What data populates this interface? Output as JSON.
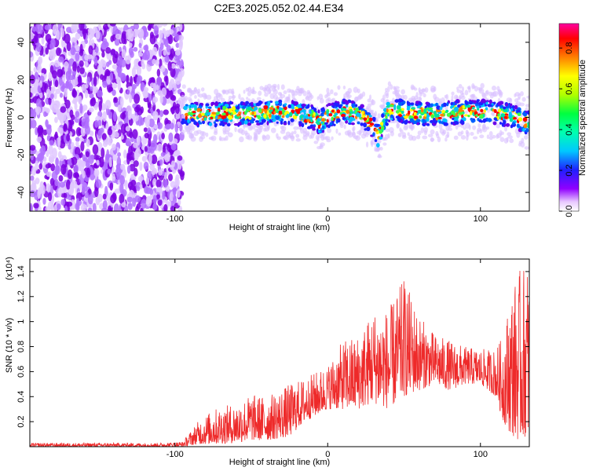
{
  "title": "C2E3.2025.052.02.44.E34",
  "chart_data": [
    {
      "type": "heatmap",
      "xlabel": "Height of straight line (km)",
      "ylabel": "Frequency (Hz)",
      "xlim": [
        -195,
        132
      ],
      "ylim": [
        -50,
        50
      ],
      "xticks": [
        -100,
        0,
        100
      ],
      "yticks": [
        -40,
        -20,
        0,
        20,
        40
      ],
      "colorbar": {
        "label": "Normalized spectral amplitude",
        "range": [
          0,
          0.92
        ],
        "ticks": [
          "0.0",
          "0.2",
          "0.4",
          "0.6",
          "0.8"
        ]
      },
      "noise_region_x": [
        -195,
        -95
      ],
      "ridge": [
        {
          "x": -95,
          "y": 3
        },
        {
          "x": -80,
          "y": 1
        },
        {
          "x": -70,
          "y": 2
        },
        {
          "x": -50,
          "y": 2
        },
        {
          "x": -35,
          "y": 3
        },
        {
          "x": -20,
          "y": 2
        },
        {
          "x": -10,
          "y": 0
        },
        {
          "x": -5,
          "y": -3
        },
        {
          "x": 0,
          "y": 1
        },
        {
          "x": 10,
          "y": 3
        },
        {
          "x": 20,
          "y": 2
        },
        {
          "x": 28,
          "y": -3
        },
        {
          "x": 33,
          "y": -10
        },
        {
          "x": 36,
          "y": -3
        },
        {
          "x": 40,
          "y": 4
        },
        {
          "x": 50,
          "y": 3
        },
        {
          "x": 60,
          "y": 2
        },
        {
          "x": 75,
          "y": 2
        },
        {
          "x": 90,
          "y": 3
        },
        {
          "x": 105,
          "y": 3
        },
        {
          "x": 120,
          "y": 1
        },
        {
          "x": 132,
          "y": -3
        }
      ],
      "color": "#8000e0"
    },
    {
      "type": "area",
      "xlabel": "Height of straight line (km)",
      "ylabel": "SNR (10 * v/v)",
      "y_multiplier": "(x10⁴)",
      "xlim": [
        -195,
        132
      ],
      "ylim": [
        0,
        1.5
      ],
      "xticks": [
        -100,
        0,
        100
      ],
      "yticks": [
        0.2,
        0.4,
        0.6,
        0.8,
        1.0,
        1.2,
        1.4
      ],
      "color": "#ee2a2a",
      "envelope": [
        {
          "x": -195,
          "lo": 0.0,
          "hi": 0.03
        },
        {
          "x": -110,
          "lo": 0.0,
          "hi": 0.03
        },
        {
          "x": -95,
          "lo": 0.0,
          "hi": 0.04
        },
        {
          "x": -85,
          "lo": 0.02,
          "hi": 0.2
        },
        {
          "x": -75,
          "lo": 0.02,
          "hi": 0.3
        },
        {
          "x": -60,
          "lo": 0.03,
          "hi": 0.35
        },
        {
          "x": -50,
          "lo": 0.05,
          "hi": 0.42
        },
        {
          "x": -40,
          "lo": 0.05,
          "hi": 0.4
        },
        {
          "x": -25,
          "lo": 0.08,
          "hi": 0.5
        },
        {
          "x": -15,
          "lo": 0.2,
          "hi": 0.55
        },
        {
          "x": 0,
          "lo": 0.3,
          "hi": 0.65
        },
        {
          "x": 10,
          "lo": 0.3,
          "hi": 0.85
        },
        {
          "x": 20,
          "lo": 0.3,
          "hi": 0.9
        },
        {
          "x": 30,
          "lo": 0.35,
          "hi": 1.1
        },
        {
          "x": 40,
          "lo": 0.3,
          "hi": 1.1
        },
        {
          "x": 50,
          "lo": 0.4,
          "hi": 1.35
        },
        {
          "x": 60,
          "lo": 0.45,
          "hi": 1.05
        },
        {
          "x": 70,
          "lo": 0.5,
          "hi": 0.9
        },
        {
          "x": 80,
          "lo": 0.45,
          "hi": 0.85
        },
        {
          "x": 90,
          "lo": 0.5,
          "hi": 0.8
        },
        {
          "x": 100,
          "lo": 0.5,
          "hi": 0.78
        },
        {
          "x": 110,
          "lo": 0.4,
          "hi": 0.78
        },
        {
          "x": 115,
          "lo": 0.2,
          "hi": 0.9
        },
        {
          "x": 120,
          "lo": 0.1,
          "hi": 1.25
        },
        {
          "x": 125,
          "lo": 0.05,
          "hi": 1.4
        },
        {
          "x": 132,
          "lo": 0.1,
          "hi": 1.5
        }
      ]
    }
  ]
}
